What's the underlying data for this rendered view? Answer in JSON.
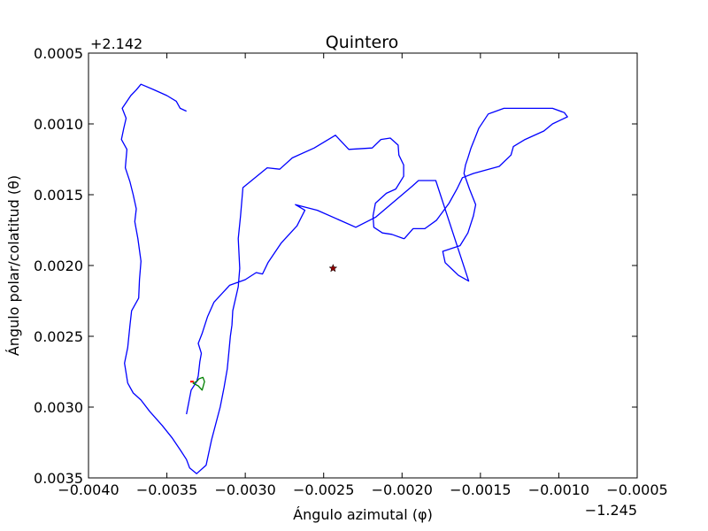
{
  "chart_data": {
    "type": "line",
    "title": "Quintero",
    "xlabel": "Ángulo azimutal (φ)",
    "ylabel": "Ángulo polar/colatitud (θ)",
    "x_offset": "−1.245",
    "y_offset": "+2.142",
    "xlim": [
      -0.004,
      -0.0005
    ],
    "ylim": [
      0.0035,
      0.0005
    ],
    "y_inverted": true,
    "grid": false,
    "xticks": [
      "−0.0040",
      "−0.0035",
      "−0.0030",
      "−0.0025",
      "−0.0020",
      "−0.0015",
      "−0.0010",
      "−0.0005"
    ],
    "xtick_values": [
      -0.004,
      -0.0035,
      -0.003,
      -0.0025,
      -0.002,
      -0.0015,
      -0.001,
      -0.0005
    ],
    "yticks": [
      "0.0005",
      "0.0010",
      "0.0015",
      "0.0020",
      "0.0025",
      "0.0030",
      "0.0035"
    ],
    "ytick_values": [
      0.0005,
      0.001,
      0.0015,
      0.002,
      0.0025,
      0.003,
      0.0035
    ],
    "series": [
      {
        "color": "#0000ff",
        "kind": "line",
        "x": [
          -0.003375,
          -0.003345,
          -0.00331,
          -0.0033,
          -0.00329,
          -0.00328,
          -0.0033,
          -0.003275,
          -0.003255,
          -0.00324,
          -0.0032,
          -0.0031,
          -0.003,
          -0.00293,
          -0.00289,
          -0.002855,
          -0.00277,
          -0.00267,
          -0.00262,
          -0.00268,
          -0.00254,
          -0.002295,
          -0.00217,
          -0.001935,
          -0.001895,
          -0.001785,
          -0.001575,
          -0.00164,
          -0.001725,
          -0.00174,
          -0.00163,
          -0.00158,
          -0.001545,
          -0.00153,
          -0.00157,
          -0.001605,
          -0.001595,
          -0.00158,
          -0.00156,
          -0.001535,
          -0.00151,
          -0.00145,
          -0.00135,
          -0.00119,
          -0.00104,
          -0.000965,
          -0.000945,
          -0.00104,
          -0.001095,
          -0.001215,
          -0.00129,
          -0.001305,
          -0.00138,
          -0.001545,
          -0.001615,
          -0.00165,
          -0.0017,
          -0.00178,
          -0.001855,
          -0.00193,
          -0.001985,
          -0.00199,
          -0.002065,
          -0.002125,
          -0.00218,
          -0.002185,
          -0.00217,
          -0.0021,
          -0.00204,
          -0.00199,
          -0.00199,
          -0.00202,
          -0.002025,
          -0.002075,
          -0.002135,
          -0.00219,
          -0.00234,
          -0.002425,
          -0.00256,
          -0.0027,
          -0.00278,
          -0.00286,
          -0.003015,
          -0.00303,
          -0.003045,
          -0.003035,
          -0.003045,
          -0.00308,
          -0.003085,
          -0.003095,
          -0.003105,
          -0.003115,
          -0.003135,
          -0.00316,
          -0.003215,
          -0.00325,
          -0.00331,
          -0.003355,
          -0.003375,
          -0.00341,
          -0.003465,
          -0.00353,
          -0.00361,
          -0.003665,
          -0.003715,
          -0.00375,
          -0.00377,
          -0.00375,
          -0.003735,
          -0.003725,
          -0.00368,
          -0.003675,
          -0.003665,
          -0.003685,
          -0.003705,
          -0.003695,
          -0.003715,
          -0.003735,
          -0.003765,
          -0.003755,
          -0.00379,
          -0.003775,
          -0.00376,
          -0.003785,
          -0.00373,
          -0.003695,
          -0.003665,
          -0.00358,
          -0.0035,
          -0.00344,
          -0.003415,
          -0.003375
        ],
        "y": [
          0.00305,
          0.00288,
          0.00282,
          0.00278,
          0.00268,
          0.00262,
          0.00255,
          0.00248,
          0.00241,
          0.00236,
          0.00226,
          0.00214,
          0.0021,
          0.00205,
          0.00206,
          0.00198,
          0.00184,
          0.00172,
          0.00161,
          0.00157,
          0.00161,
          0.00173,
          0.00166,
          0.00144,
          0.0014,
          0.0014,
          0.00211,
          0.00207,
          0.00198,
          0.0019,
          0.00186,
          0.00177,
          0.00165,
          0.00157,
          0.00146,
          0.00135,
          0.00129,
          0.00124,
          0.00117,
          0.0011,
          0.00103,
          0.00093,
          0.00089,
          0.00089,
          0.00089,
          0.00092,
          0.00095,
          0.001,
          0.00105,
          0.00111,
          0.00116,
          0.00122,
          0.0013,
          0.00135,
          0.00138,
          0.00146,
          0.00156,
          0.00168,
          0.00174,
          0.00174,
          0.00181,
          0.00181,
          0.00178,
          0.00177,
          0.00173,
          0.00165,
          0.00156,
          0.00149,
          0.00146,
          0.00137,
          0.00129,
          0.00122,
          0.00115,
          0.0011,
          0.00111,
          0.00117,
          0.00118,
          0.00108,
          0.00117,
          0.00124,
          0.00132,
          0.00131,
          0.00145,
          0.00165,
          0.00181,
          0.00202,
          0.00215,
          0.00232,
          0.00242,
          0.0025,
          0.00262,
          0.00273,
          0.00286,
          0.003,
          0.00323,
          0.00341,
          0.00347,
          0.00343,
          0.00337,
          0.00331,
          0.00322,
          0.00313,
          0.00303,
          0.00295,
          0.0029,
          0.00283,
          0.00269,
          0.00258,
          0.00242,
          0.00232,
          0.00223,
          0.0021,
          0.00197,
          0.00181,
          0.00169,
          0.0016,
          0.0015,
          0.00141,
          0.00131,
          0.00118,
          0.00111,
          0.00103,
          0.00096,
          0.00089,
          0.0008,
          0.00076,
          0.00072,
          0.00076,
          0.0008,
          0.00084,
          0.00089,
          0.00091
        ]
      },
      {
        "color": "#008000",
        "kind": "line",
        "x": [
          -0.003335,
          -0.0033,
          -0.003275,
          -0.00326,
          -0.00327,
          -0.003295,
          -0.00331,
          -0.003335
        ],
        "y": [
          0.00283,
          0.00285,
          0.00288,
          0.00282,
          0.00279,
          0.0028,
          0.00282,
          0.00283
        ]
      },
      {
        "color": "#ff0000",
        "kind": "point",
        "x": [
          -0.00334
        ],
        "y": [
          0.00282
        ]
      },
      {
        "color": "#8b0000",
        "kind": "star",
        "x": [
          -0.00244
        ],
        "y": [
          0.00202
        ]
      }
    ]
  }
}
